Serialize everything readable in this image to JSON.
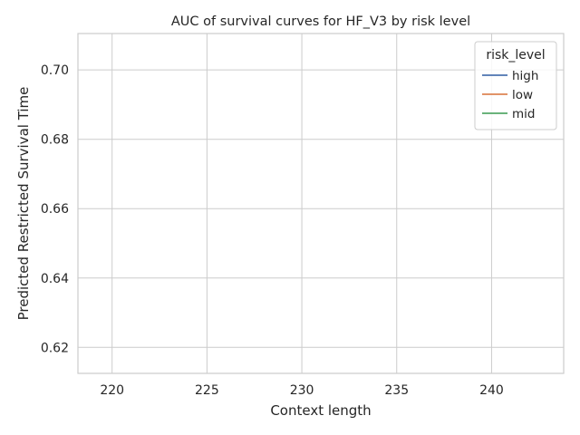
{
  "chart_data": {
    "type": "line",
    "title": "AUC of survival curves for HF_V3 by risk level",
    "xlabel": "Context length",
    "ylabel": "Predicted Restricted Survival Time",
    "xlim": [
      218.2,
      243.8
    ],
    "ylim": [
      0.6125,
      0.7105
    ],
    "x_ticks": [
      220,
      225,
      230,
      235,
      240
    ],
    "y_ticks": [
      0.62,
      0.64,
      0.66,
      0.68,
      0.7
    ],
    "x_tick_labels": [
      "220",
      "225",
      "230",
      "235",
      "240"
    ],
    "y_tick_labels": [
      "0.62",
      "0.64",
      "0.66",
      "0.68",
      "0.70"
    ],
    "grid": true,
    "legend": {
      "title": "risk_level",
      "position": "top-right"
    },
    "series": [
      {
        "name": "high",
        "color": "#4c72b0",
        "x": [],
        "y": []
      },
      {
        "name": "low",
        "color": "#dd8452",
        "x": [],
        "y": []
      },
      {
        "name": "mid",
        "color": "#55a868",
        "x": [],
        "y": []
      }
    ]
  }
}
